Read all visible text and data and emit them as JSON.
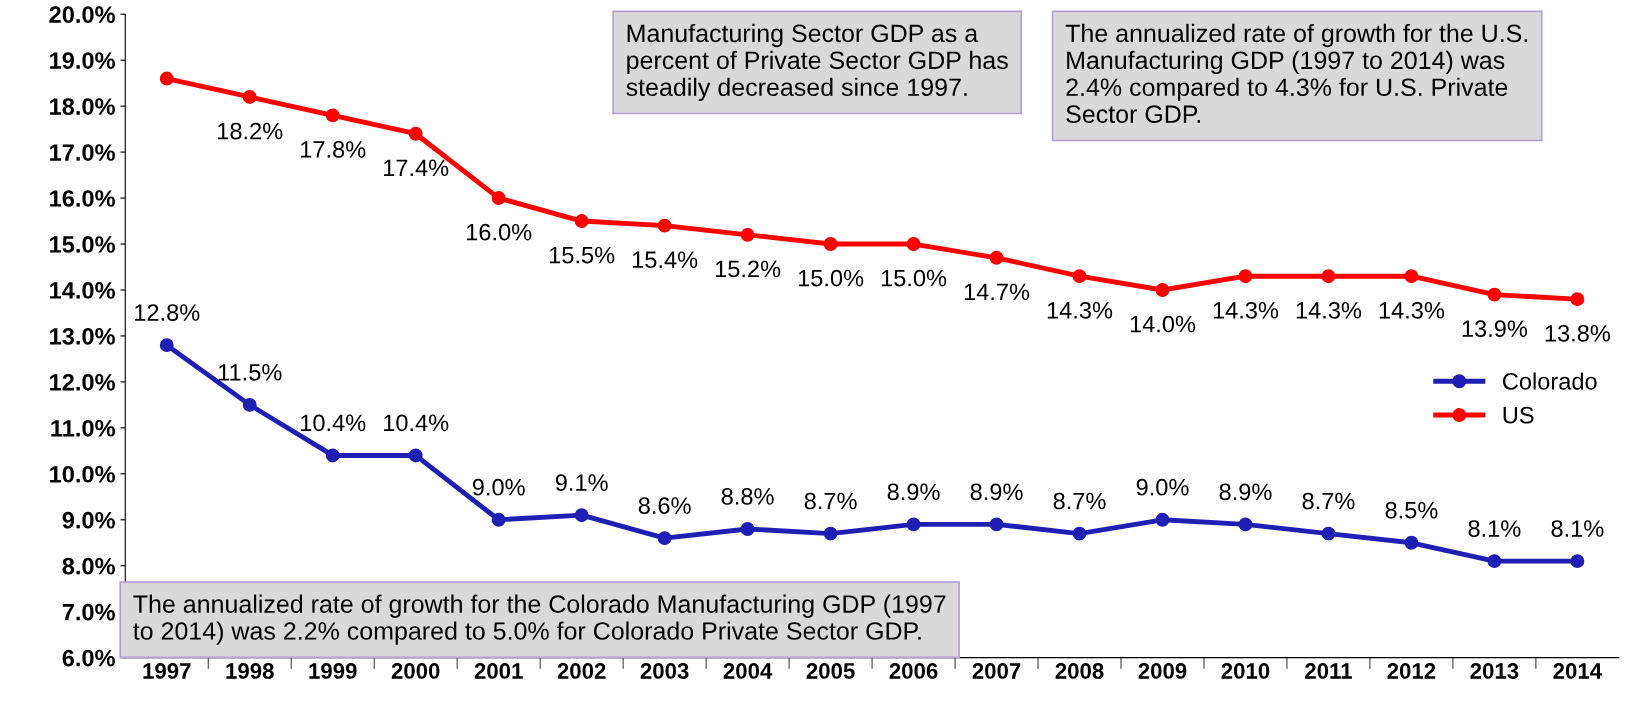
{
  "chart_data": {
    "type": "line",
    "categories": [
      "1997",
      "1998",
      "1999",
      "2000",
      "2001",
      "2002",
      "2003",
      "2004",
      "2005",
      "2006",
      "2007",
      "2008",
      "2009",
      "2010",
      "2011",
      "2012",
      "2013",
      "2014"
    ],
    "series": [
      {
        "name": "Colorado",
        "color": "#1f1fb4",
        "values": [
          12.8,
          11.5,
          10.4,
          10.4,
          9.0,
          9.1,
          8.6,
          8.8,
          8.7,
          8.9,
          8.9,
          8.7,
          9.0,
          8.9,
          8.7,
          8.5,
          8.1,
          8.1
        ],
        "value_labels": [
          "12.8%",
          "11.5%",
          "10.4%",
          "10.4%",
          "9.0%",
          "9.1%",
          "8.6%",
          "8.8%",
          "8.7%",
          "8.9%",
          "8.9%",
          "8.7%",
          "9.0%",
          "8.9%",
          "8.7%",
          "8.5%",
          "8.1%",
          "8.1%"
        ]
      },
      {
        "name": "US",
        "color": "#ff0000",
        "values": [
          18.6,
          18.2,
          17.8,
          17.4,
          16.0,
          15.5,
          15.4,
          15.2,
          15.0,
          15.0,
          14.7,
          14.3,
          14.0,
          14.3,
          14.3,
          14.3,
          13.9,
          13.8
        ],
        "value_labels": [
          null,
          "18.2%",
          "17.8%",
          "17.4%",
          "16.0%",
          "15.5%",
          "15.4%",
          "15.2%",
          "15.0%",
          "15.0%",
          "14.7%",
          "14.3%",
          "14.0%",
          "14.3%",
          "14.3%",
          "14.3%",
          "13.9%",
          "13.8%"
        ]
      }
    ],
    "ylim": [
      6,
      20
    ],
    "yticks": [
      {
        "value": 6,
        "label": "6.0%"
      },
      {
        "value": 7,
        "label": "7.0%"
      },
      {
        "value": 8,
        "label": "8.0%"
      },
      {
        "value": 9,
        "label": "9.0%"
      },
      {
        "value": 10,
        "label": "10.0%"
      },
      {
        "value": 11,
        "label": "11.0%"
      },
      {
        "value": 12,
        "label": "12.0%"
      },
      {
        "value": 13,
        "label": "13.0%"
      },
      {
        "value": 14,
        "label": "14.0%"
      },
      {
        "value": 15,
        "label": "15.0%"
      },
      {
        "value": 16,
        "label": "16.0%"
      },
      {
        "value": 17,
        "label": "17.0%"
      },
      {
        "value": 18,
        "label": "18.0%"
      },
      {
        "value": 19,
        "label": "19.0%"
      },
      {
        "value": 20,
        "label": "20.0%"
      }
    ],
    "grid": false,
    "legend": "right",
    "marker": "circle",
    "line_style": "solid",
    "annotations": [
      "Manufacturing Sector GDP as a\npercent of Private Sector GDP has\nsteadily decreased since 1997.",
      "The annualized rate of growth for the U.S.\nManufacturing GDP (1997 to 2014) was\n2.4% compared to 4.3% for U.S. Private\nSector GDP.",
      "The annualized rate of growth for the Colorado Manufacturing GDP (1997\nto 2014) was 2.2% compared to 5.0% for Colorado Private Sector GDP."
    ]
  }
}
